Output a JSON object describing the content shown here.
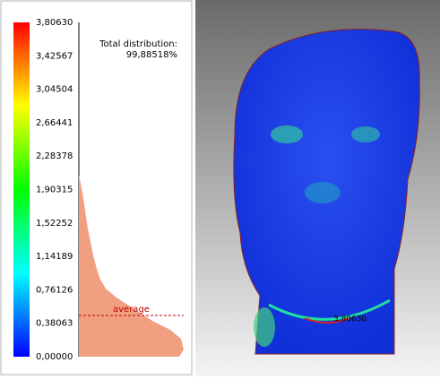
{
  "scale": {
    "ticks": [
      "3,80630",
      "3,42567",
      "3,04504",
      "2,66441",
      "2,28378",
      "1,90315",
      "1,52252",
      "1,14189",
      "0,76126",
      "0,38063",
      "0,00000"
    ]
  },
  "distribution": {
    "label": "Total distribution:",
    "value": "99,88518%"
  },
  "average_label": "average",
  "max_point_label": "3,80630"
}
